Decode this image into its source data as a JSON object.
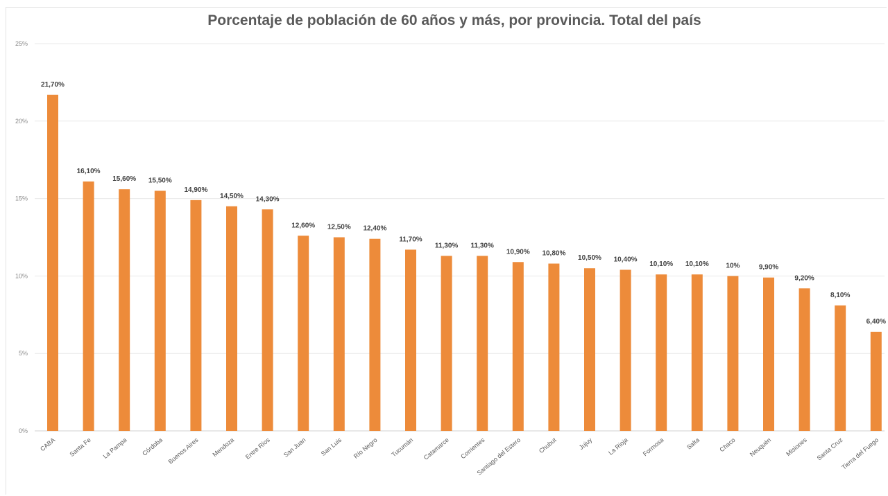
{
  "chart_data": {
    "type": "bar",
    "title": "Porcentaje de población de 60 años y más, por provincia. Total del país",
    "xlabel": "",
    "ylabel": "",
    "ylim": [
      0,
      25
    ],
    "yticks": [
      "0%",
      "5%",
      "10%",
      "15%",
      "20%",
      "25%"
    ],
    "grid": true,
    "legend": "none",
    "bar_color": "#ed8b3a",
    "categories": [
      "CABA",
      "Santa Fe",
      "La Pampa",
      "Córdoba",
      "Buenos Aires",
      "Mendoza",
      "Entre Ríos",
      "San Juan",
      "San Luis",
      "Río Negro",
      "Tucumán",
      "Catamarce",
      "Corrientes",
      "Santiago del Estero",
      "Chubut",
      "Jujuy",
      "La Rioja",
      "Formosa",
      "Salta",
      "Chaco",
      "Neuquén",
      "Misiones",
      "Santa Cruz",
      "Tierra del Fuego"
    ],
    "values": [
      21.7,
      16.1,
      15.6,
      15.5,
      14.9,
      14.5,
      14.3,
      12.6,
      12.5,
      12.4,
      11.7,
      11.3,
      11.3,
      10.9,
      10.8,
      10.5,
      10.4,
      10.1,
      10.1,
      10.0,
      9.9,
      9.2,
      8.1,
      6.4
    ],
    "data_labels": [
      "21,70%",
      "16,10%",
      "15,60%",
      "15,50%",
      "14,90%",
      "14,50%",
      "14,30%",
      "12,60%",
      "12,50%",
      "12,40%",
      "11,70%",
      "11,30%",
      "11,30%",
      "10,90%",
      "10,80%",
      "10,50%",
      "10,40%",
      "10,10%",
      "10,10%",
      "10%",
      "9,90%",
      "9,20%",
      "8,10%",
      "6,40%"
    ]
  }
}
